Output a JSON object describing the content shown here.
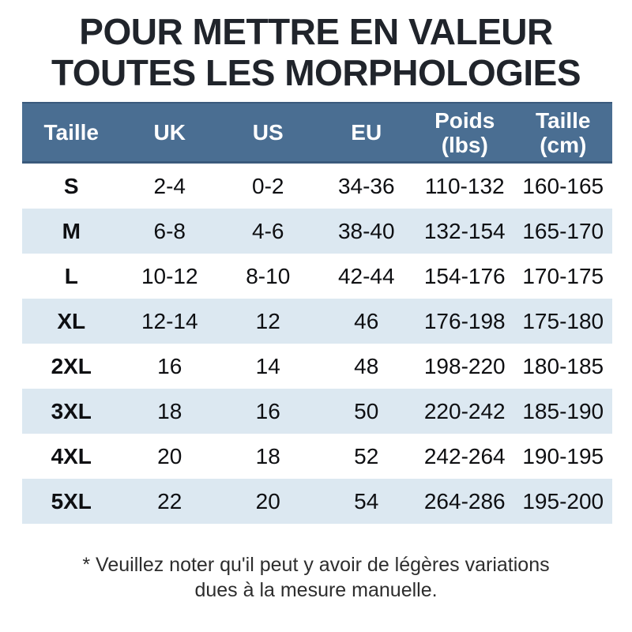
{
  "title": {
    "line1": "POUR METTRE EN VALEUR",
    "line2": "TOUTES LES MORPHOLOGIES"
  },
  "table": {
    "columns": [
      "Taille",
      "UK",
      "US",
      "EU",
      "Poids (lbs)",
      "Taille (cm)"
    ],
    "rows": [
      [
        "S",
        "2-4",
        "0-2",
        "34-36",
        "110-132",
        "160-165"
      ],
      [
        "M",
        "6-8",
        "4-6",
        "38-40",
        "132-154",
        "165-170"
      ],
      [
        "L",
        "10-12",
        "8-10",
        "42-44",
        "154-176",
        "170-175"
      ],
      [
        "XL",
        "12-14",
        "12",
        "46",
        "176-198",
        "175-180"
      ],
      [
        "2XL",
        "16",
        "14",
        "48",
        "198-220",
        "180-185"
      ],
      [
        "3XL",
        "18",
        "16",
        "50",
        "220-242",
        "185-190"
      ],
      [
        "4XL",
        "20",
        "18",
        "52",
        "242-264",
        "190-195"
      ],
      [
        "5XL",
        "22",
        "20",
        "54",
        "264-286",
        "195-200"
      ]
    ]
  },
  "footnote": {
    "line1": "* Veuillez noter qu'il peut y avoir de légères variations",
    "line2": "dues à la mesure manuelle."
  },
  "colors": {
    "background": "#ffffff",
    "title_text": "#20242b",
    "header_bg": "#4a6e92",
    "header_border": "#3a5a7c",
    "header_text": "#ffffff",
    "row_alt_bg": "#dce8f1",
    "body_text": "#0e0f12",
    "footnote_text": "#2d2d2d"
  }
}
